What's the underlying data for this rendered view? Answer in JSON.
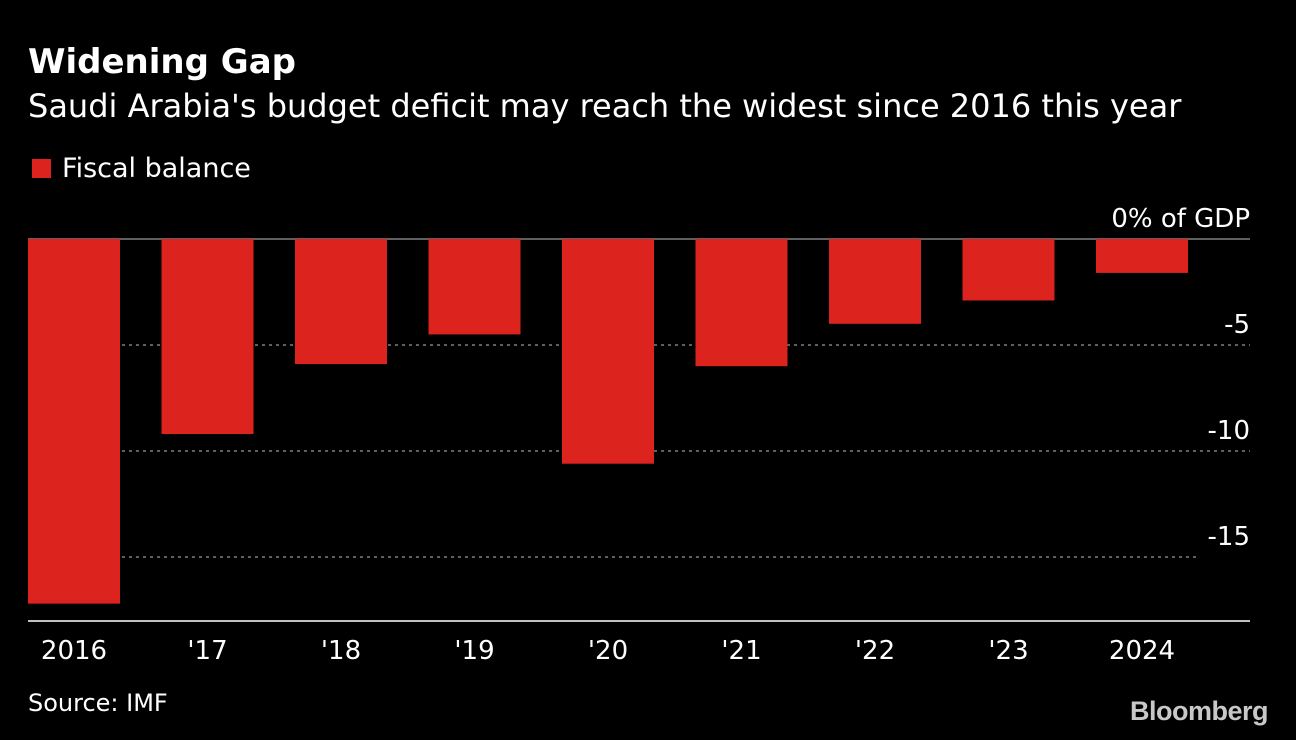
{
  "header": {
    "title": "Widening Gap",
    "subtitle": "Saudi Arabia's budget deficit may reach the widest since 2016 this year"
  },
  "legend": {
    "label": "Fiscal balance"
  },
  "footer": {
    "source": "Source: IMF",
    "brand": "Bloomberg"
  },
  "colors": {
    "background": "#000000",
    "bar": "#dc231e",
    "text": "#ffffff",
    "gridline": "#9a9a9a"
  },
  "chart_data": {
    "type": "bar",
    "title": "Widening Gap",
    "subtitle": "Saudi Arabia's budget deficit may reach the widest since 2016 this year",
    "categories": [
      "2016",
      "'17",
      "'18",
      "'19",
      "'20",
      "'21",
      "'22",
      "'23",
      "2024"
    ],
    "series": [
      {
        "name": "Fiscal balance",
        "values": [
          -17.2,
          -9.2,
          -5.9,
          -4.5,
          -10.6,
          -6.0,
          -4.0,
          -2.9,
          -1.6
        ]
      }
    ],
    "ylabel": "% of GDP",
    "ylim": [
      -18,
      0
    ],
    "yticks": [
      {
        "value": 0,
        "label": "0% of GDP"
      },
      {
        "value": -5,
        "label": "-5"
      },
      {
        "value": -10,
        "label": "-10"
      },
      {
        "value": -15,
        "label": "-15"
      }
    ],
    "grid": true,
    "legend_position": "top-left",
    "source": "Source: IMF"
  }
}
